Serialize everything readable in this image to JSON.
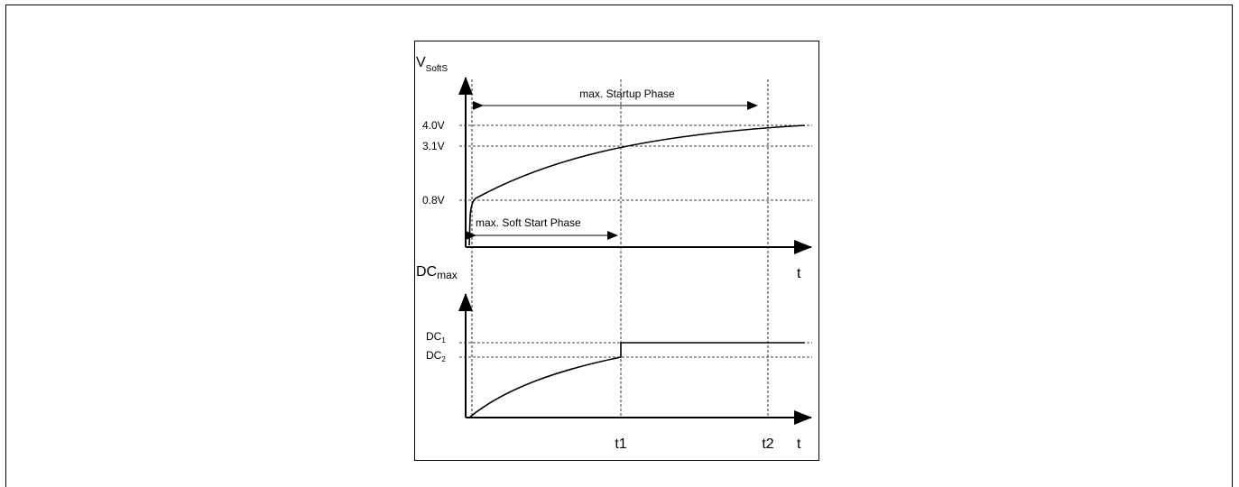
{
  "top_plot": {
    "y_symbol": "V",
    "y_symbol_sub": "SoftS",
    "x_label": "t",
    "levels": [
      "4.0V",
      "3.1V",
      "0.8V"
    ],
    "startup_label": "max. Startup Phase",
    "soft_start_label": "max. Soft Start Phase"
  },
  "bottom_plot": {
    "y_symbol": "DC",
    "y_symbol_sub": "max",
    "x_label": "t",
    "levels": [
      {
        "main": "DC",
        "sub": "1"
      },
      {
        "main": "DC",
        "sub": "2"
      }
    ],
    "time_marks": [
      "t1",
      "t2"
    ]
  },
  "colors": {
    "line": "#000000",
    "background": "#ffffff"
  }
}
